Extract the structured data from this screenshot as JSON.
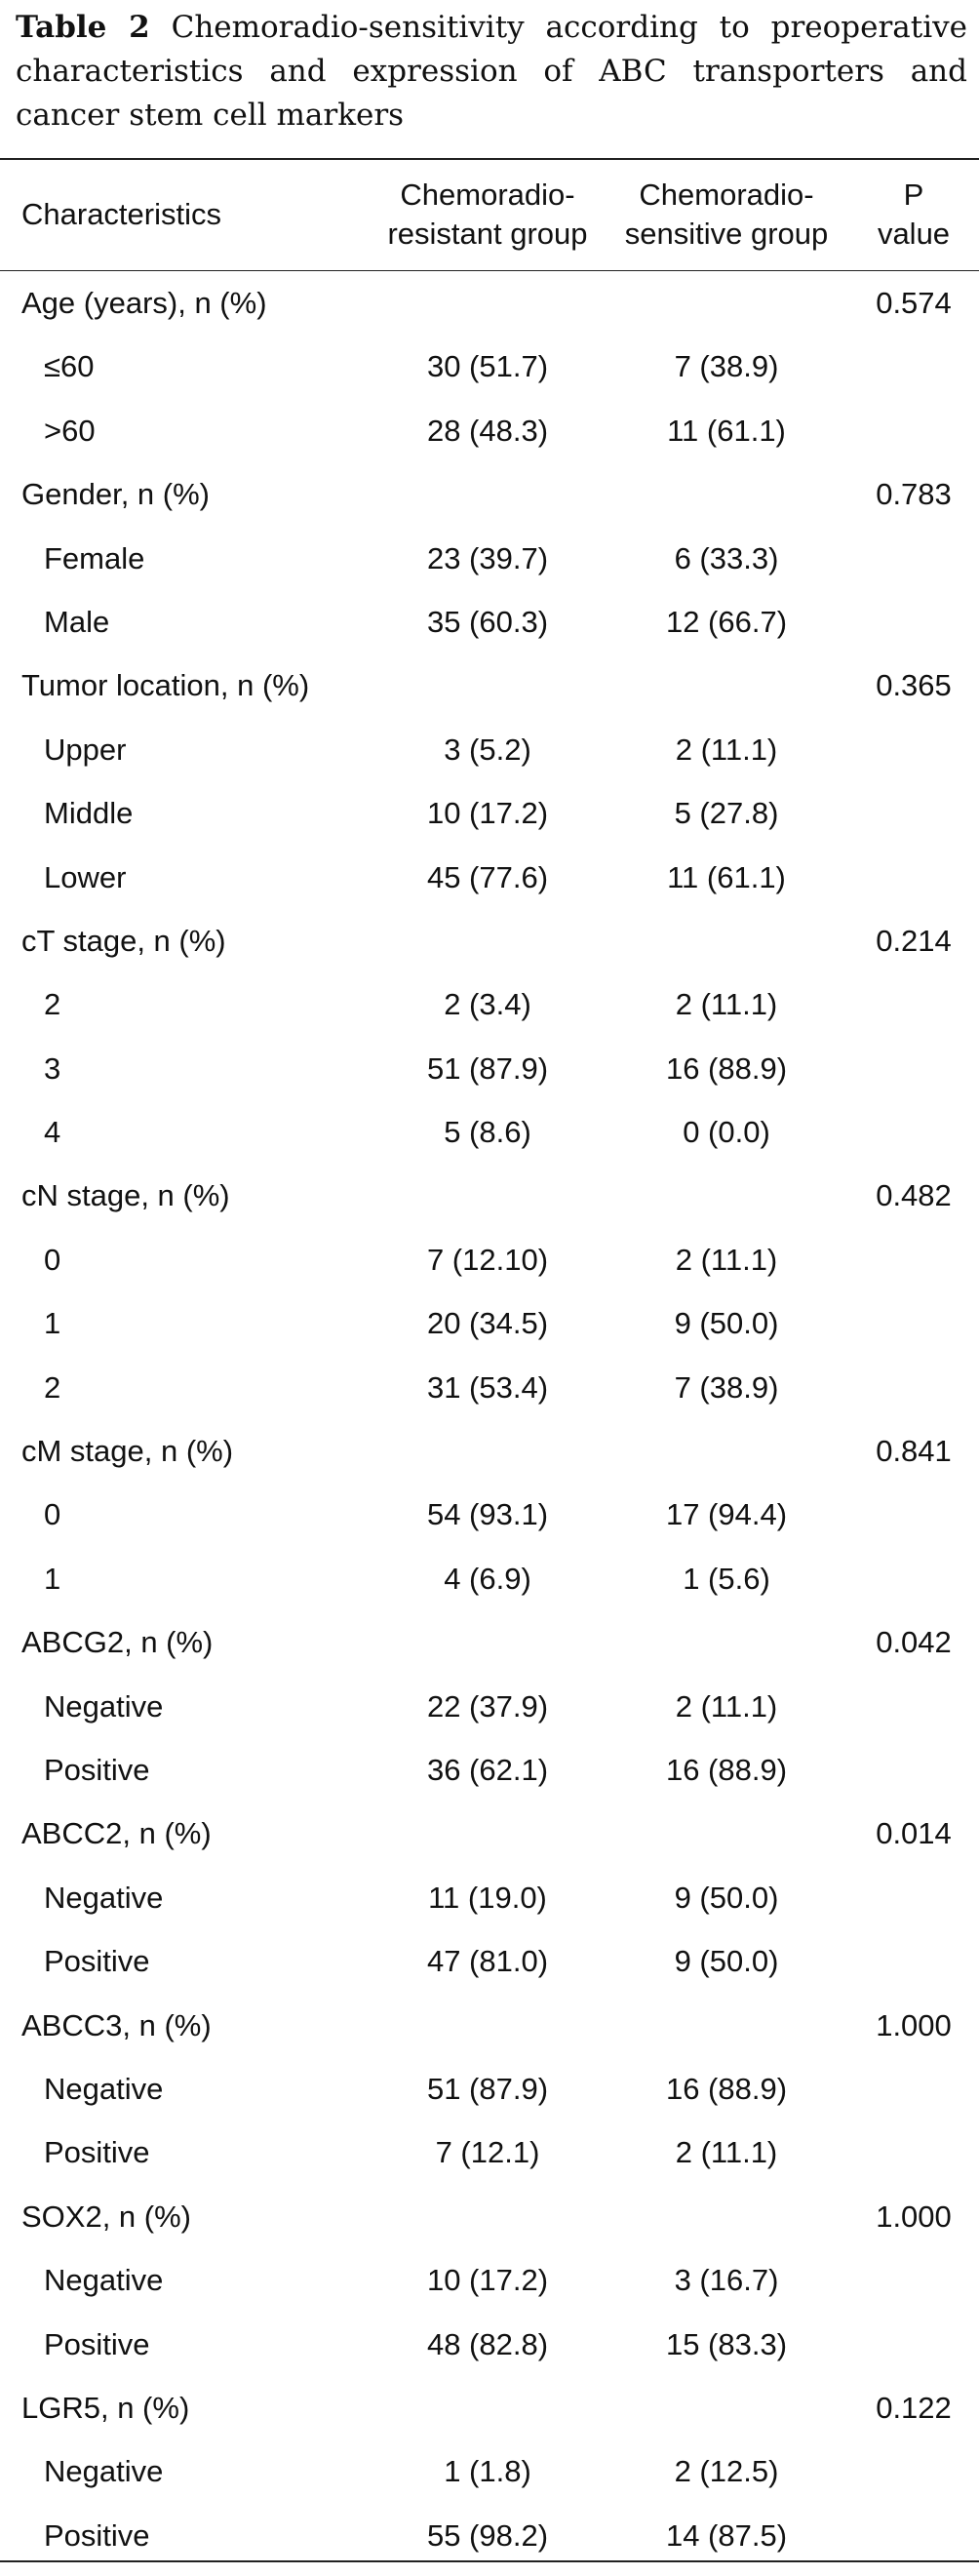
{
  "caption": {
    "label": "Table 2",
    "text": "Chemoradio-sensitivity according to preoperative characteristics and expression of ABC transporters and cancer stem cell markers"
  },
  "table": {
    "headers": [
      {
        "lines": [
          "Characteristics"
        ]
      },
      {
        "lines": [
          "Chemoradio-",
          "resistant group"
        ]
      },
      {
        "lines": [
          "Chemoradio-",
          "sensitive group"
        ]
      },
      {
        "lines": [
          "P",
          "value"
        ]
      }
    ],
    "rows": [
      {
        "type": "group",
        "cells": [
          "Age (years), n (%)",
          "",
          "",
          "0.574"
        ]
      },
      {
        "type": "sub",
        "cells": [
          "≤60",
          "30 (51.7)",
          "7 (38.9)",
          ""
        ]
      },
      {
        "type": "sub",
        "cells": [
          ">60",
          "28 (48.3)",
          "11 (61.1)",
          ""
        ]
      },
      {
        "type": "group",
        "cells": [
          "Gender, n (%)",
          "",
          "",
          "0.783"
        ]
      },
      {
        "type": "sub",
        "cells": [
          "Female",
          "23 (39.7)",
          "6 (33.3)",
          ""
        ]
      },
      {
        "type": "sub",
        "cells": [
          "Male",
          "35 (60.3)",
          "12 (66.7)",
          ""
        ]
      },
      {
        "type": "group",
        "cells": [
          "Tumor location, n (%)",
          "",
          "",
          "0.365"
        ]
      },
      {
        "type": "sub",
        "cells": [
          "Upper",
          "3 (5.2)",
          "2 (11.1)",
          ""
        ]
      },
      {
        "type": "sub",
        "cells": [
          "Middle",
          "10 (17.2)",
          "5 (27.8)",
          ""
        ]
      },
      {
        "type": "sub",
        "cells": [
          "Lower",
          "45 (77.6)",
          "11 (61.1)",
          ""
        ]
      },
      {
        "type": "group",
        "cells": [
          "cT stage, n (%)",
          "",
          "",
          "0.214"
        ]
      },
      {
        "type": "sub",
        "cells": [
          "2",
          "2 (3.4)",
          "2 (11.1)",
          ""
        ]
      },
      {
        "type": "sub",
        "cells": [
          "3",
          "51 (87.9)",
          "16 (88.9)",
          ""
        ]
      },
      {
        "type": "sub",
        "cells": [
          "4",
          "5 (8.6)",
          "0 (0.0)",
          ""
        ]
      },
      {
        "type": "group",
        "cells": [
          "cN stage, n (%)",
          "",
          "",
          "0.482"
        ]
      },
      {
        "type": "sub",
        "cells": [
          "0",
          "7 (12.10)",
          "2 (11.1)",
          ""
        ]
      },
      {
        "type": "sub",
        "cells": [
          "1",
          "20 (34.5)",
          "9 (50.0)",
          ""
        ]
      },
      {
        "type": "sub",
        "cells": [
          "2",
          "31 (53.4)",
          "7 (38.9)",
          ""
        ]
      },
      {
        "type": "group",
        "cells": [
          "cM stage, n (%)",
          "",
          "",
          "0.841"
        ]
      },
      {
        "type": "sub",
        "cells": [
          "0",
          "54 (93.1)",
          "17 (94.4)",
          ""
        ]
      },
      {
        "type": "sub",
        "cells": [
          "1",
          "4 (6.9)",
          "1 (5.6)",
          ""
        ]
      },
      {
        "type": "group",
        "cells": [
          "ABCG2, n (%)",
          "",
          "",
          "0.042"
        ]
      },
      {
        "type": "sub",
        "cells": [
          "Negative",
          "22 (37.9)",
          "2 (11.1)",
          ""
        ]
      },
      {
        "type": "sub",
        "cells": [
          "Positive",
          "36 (62.1)",
          "16 (88.9)",
          ""
        ]
      },
      {
        "type": "group",
        "cells": [
          "ABCC2, n (%)",
          "",
          "",
          "0.014"
        ]
      },
      {
        "type": "sub",
        "cells": [
          "Negative",
          "11 (19.0)",
          "9 (50.0)",
          ""
        ]
      },
      {
        "type": "sub",
        "cells": [
          "Positive",
          "47 (81.0)",
          "9 (50.0)",
          ""
        ]
      },
      {
        "type": "group",
        "cells": [
          "ABCC3, n (%)",
          "",
          "",
          "1.000"
        ]
      },
      {
        "type": "sub",
        "cells": [
          "Negative",
          "51 (87.9)",
          "16 (88.9)",
          ""
        ]
      },
      {
        "type": "sub",
        "cells": [
          "Positive",
          "7 (12.1)",
          "2 (11.1)",
          ""
        ]
      },
      {
        "type": "group",
        "cells": [
          "SOX2, n (%)",
          "",
          "",
          "1.000"
        ]
      },
      {
        "type": "sub",
        "cells": [
          "Negative",
          "10 (17.2)",
          "3 (16.7)",
          ""
        ]
      },
      {
        "type": "sub",
        "cells": [
          "Positive",
          "48 (82.8)",
          "15 (83.3)",
          ""
        ]
      },
      {
        "type": "group",
        "cells": [
          "LGR5, n (%)",
          "",
          "",
          "0.122"
        ]
      },
      {
        "type": "sub",
        "cells": [
          "Negative",
          "1 (1.8)",
          "2 (12.5)",
          ""
        ]
      },
      {
        "type": "sub",
        "cells": [
          "Positive",
          "55 (98.2)",
          "14 (87.5)",
          ""
        ]
      }
    ]
  }
}
